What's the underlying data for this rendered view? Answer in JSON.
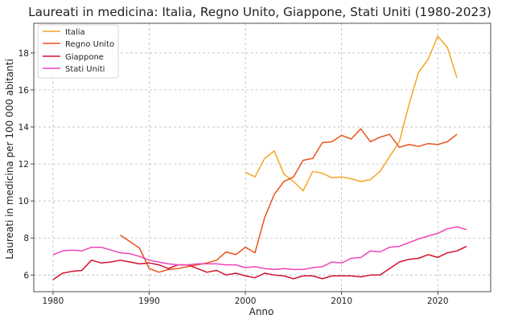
{
  "chart_data": {
    "type": "line",
    "title": "Laureati in medicina: Italia, Regno Unito, Giappone, Stati Uniti (1980-2023)",
    "xlabel": "Anno",
    "ylabel": "Laureati in medicina per 100 000 abitanti",
    "xlim": [
      1978,
      2025.5
    ],
    "ylim": [
      5.1,
      19.6
    ],
    "xticks": [
      1980,
      1990,
      2000,
      2010,
      2020
    ],
    "yticks": [
      6,
      8,
      10,
      12,
      14,
      16,
      18
    ],
    "grid": true,
    "legend_position": "top-left",
    "series": [
      {
        "name": "Italia",
        "color": "#f5a623",
        "points": [
          [
            2000,
            11.55
          ],
          [
            2001,
            11.3
          ],
          [
            2002,
            12.3
          ],
          [
            2003,
            12.7
          ],
          [
            2004,
            11.45
          ],
          [
            2005,
            11.05
          ],
          [
            2006,
            10.55
          ],
          [
            2007,
            11.6
          ],
          [
            2008,
            11.5
          ],
          [
            2009,
            11.25
          ],
          [
            2010,
            11.3
          ],
          [
            2011,
            11.2
          ],
          [
            2012,
            11.05
          ],
          [
            2013,
            11.15
          ],
          [
            2014,
            11.6
          ],
          [
            2015,
            12.4
          ],
          [
            2016,
            13.2
          ],
          [
            2017,
            15.2
          ],
          [
            2018,
            16.95
          ],
          [
            2019,
            17.65
          ],
          [
            2020,
            18.9
          ],
          [
            2021,
            18.3
          ],
          [
            2022,
            16.65
          ]
        ]
      },
      {
        "name": "Regno Unito",
        "color": "#e8541a",
        "points": [
          [
            1987,
            8.15
          ],
          [
            1988,
            7.8
          ],
          [
            1989,
            7.45
          ],
          [
            1990,
            6.35
          ],
          [
            1991,
            6.15
          ],
          [
            1992,
            6.3
          ],
          [
            1993,
            6.35
          ],
          [
            1994,
            6.45
          ],
          [
            1995,
            6.55
          ],
          [
            1996,
            6.65
          ],
          [
            1997,
            6.8
          ],
          [
            1998,
            7.25
          ],
          [
            1999,
            7.1
          ],
          [
            2000,
            7.5
          ],
          [
            2001,
            7.2
          ],
          [
            2002,
            9.1
          ],
          [
            2003,
            10.35
          ],
          [
            2004,
            11.05
          ],
          [
            2005,
            11.3
          ],
          [
            2006,
            12.2
          ],
          [
            2007,
            12.3
          ],
          [
            2008,
            13.15
          ],
          [
            2009,
            13.2
          ],
          [
            2010,
            13.55
          ],
          [
            2011,
            13.35
          ],
          [
            2012,
            13.9
          ],
          [
            2013,
            13.2
          ],
          [
            2014,
            13.45
          ],
          [
            2015,
            13.6
          ],
          [
            2016,
            12.9
          ],
          [
            2017,
            13.05
          ],
          [
            2018,
            12.95
          ],
          [
            2019,
            13.1
          ],
          [
            2020,
            13.05
          ],
          [
            2021,
            13.2
          ],
          [
            2022,
            13.6
          ]
        ]
      },
      {
        "name": "Giappone",
        "color": "#d0122e",
        "points": [
          [
            1980,
            5.75
          ],
          [
            1981,
            6.1
          ],
          [
            1982,
            6.2
          ],
          [
            1983,
            6.25
          ],
          [
            1984,
            6.8
          ],
          [
            1985,
            6.65
          ],
          [
            1986,
            6.7
          ],
          [
            1987,
            6.8
          ],
          [
            1988,
            6.7
          ],
          [
            1989,
            6.6
          ],
          [
            1990,
            6.65
          ],
          [
            1991,
            6.55
          ],
          [
            1992,
            6.35
          ],
          [
            1993,
            6.55
          ],
          [
            1994,
            6.55
          ],
          [
            1995,
            6.35
          ],
          [
            1996,
            6.15
          ],
          [
            1997,
            6.25
          ],
          [
            1998,
            6.0
          ],
          [
            1999,
            6.1
          ],
          [
            2000,
            5.95
          ],
          [
            2001,
            5.85
          ],
          [
            2002,
            6.1
          ],
          [
            2003,
            6.0
          ],
          [
            2004,
            5.95
          ],
          [
            2005,
            5.8
          ],
          [
            2006,
            5.95
          ],
          [
            2007,
            5.95
          ],
          [
            2008,
            5.8
          ],
          [
            2009,
            5.95
          ],
          [
            2010,
            5.95
          ],
          [
            2011,
            5.95
          ],
          [
            2012,
            5.9
          ],
          [
            2013,
            6.0
          ],
          [
            2014,
            6.0
          ],
          [
            2015,
            6.35
          ],
          [
            2016,
            6.7
          ],
          [
            2017,
            6.85
          ],
          [
            2018,
            6.9
          ],
          [
            2019,
            7.1
          ],
          [
            2020,
            6.95
          ],
          [
            2021,
            7.2
          ],
          [
            2022,
            7.3
          ],
          [
            2023,
            7.55
          ]
        ]
      },
      {
        "name": "Stati Uniti",
        "color": "#ee44b9",
        "points": [
          [
            1980,
            7.1
          ],
          [
            1981,
            7.3
          ],
          [
            1982,
            7.35
          ],
          [
            1983,
            7.3
          ],
          [
            1984,
            7.5
          ],
          [
            1985,
            7.5
          ],
          [
            1986,
            7.35
          ],
          [
            1987,
            7.2
          ],
          [
            1988,
            7.15
          ],
          [
            1989,
            7.0
          ],
          [
            1990,
            6.8
          ],
          [
            1991,
            6.7
          ],
          [
            1992,
            6.6
          ],
          [
            1993,
            6.55
          ],
          [
            1994,
            6.55
          ],
          [
            1995,
            6.6
          ],
          [
            1996,
            6.6
          ],
          [
            1997,
            6.6
          ],
          [
            1998,
            6.55
          ],
          [
            1999,
            6.55
          ],
          [
            2000,
            6.4
          ],
          [
            2001,
            6.45
          ],
          [
            2002,
            6.35
          ],
          [
            2003,
            6.3
          ],
          [
            2004,
            6.35
          ],
          [
            2005,
            6.3
          ],
          [
            2006,
            6.3
          ],
          [
            2007,
            6.4
          ],
          [
            2008,
            6.45
          ],
          [
            2009,
            6.7
          ],
          [
            2010,
            6.65
          ],
          [
            2011,
            6.9
          ],
          [
            2012,
            6.95
          ],
          [
            2013,
            7.3
          ],
          [
            2014,
            7.25
          ],
          [
            2015,
            7.5
          ],
          [
            2016,
            7.55
          ],
          [
            2017,
            7.75
          ],
          [
            2018,
            7.95
          ],
          [
            2019,
            8.1
          ],
          [
            2020,
            8.25
          ],
          [
            2021,
            8.5
          ],
          [
            2022,
            8.6
          ],
          [
            2023,
            8.45
          ]
        ]
      }
    ]
  }
}
